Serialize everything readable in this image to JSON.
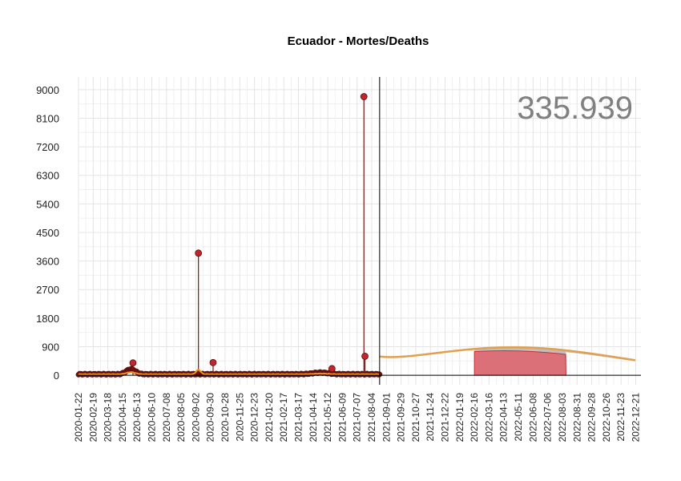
{
  "chart_data": {
    "type": "line",
    "title": "Ecuador - Mortes/Deaths",
    "total_label": "335.939",
    "ylim": [
      -300,
      9400
    ],
    "yticks": [
      0,
      900,
      1800,
      2700,
      3600,
      4500,
      5400,
      6300,
      7200,
      8100,
      9000
    ],
    "x_start": "2020-01-22",
    "x_end": "2022-12-31",
    "observed_end": "2021-08-19",
    "xtick_labels": [
      "2020-01-22",
      "2020-02-19",
      "2020-03-18",
      "2020-04-15",
      "2020-05-13",
      "2020-06-10",
      "2020-07-08",
      "2020-08-05",
      "2020-09-02",
      "2020-09-30",
      "2020-10-28",
      "2020-11-25",
      "2020-12-23",
      "2021-01-20",
      "2021-02-17",
      "2021-03-17",
      "2021-04-14",
      "2021-05-12",
      "2021-06-09",
      "2021-07-07",
      "2021-08-04",
      "2021-09-01",
      "2021-09-29",
      "2021-10-27",
      "2021-11-24",
      "2021-12-22",
      "2022-01-19",
      "2022-02-16",
      "2022-03-16",
      "2022-04-13",
      "2022-05-11",
      "2022-06-08",
      "2022-07-06",
      "2022-08-03",
      "2022-08-31",
      "2022-09-28",
      "2022-10-26",
      "2022-11-23",
      "2022-12-21"
    ],
    "grid": true,
    "colors": {
      "observed": "#7a1414",
      "points": "#c0262e",
      "smooth": "#f0901e",
      "projection": "#e0a050",
      "band_outer": "#b8b8b8",
      "band_inner": "#dc7078",
      "band_inner_edge": "#c8303a",
      "vline": "#000000"
    },
    "spikes": [
      {
        "date": "2020-09-07",
        "value": 3850
      },
      {
        "date": "2021-07-20",
        "value": 8780
      },
      {
        "date": "2020-10-05",
        "value": 400
      },
      {
        "date": "2021-07-22",
        "value": 600
      },
      {
        "date": "2020-05-05",
        "value": 390
      },
      {
        "date": "2021-05-20",
        "value": 210
      }
    ],
    "projection": {
      "peak_date": "2022-05-01",
      "peak_value": 880,
      "spread_days": 210,
      "shaded_start": "2022-02-16",
      "shaded_end": "2022-08-10"
    }
  }
}
